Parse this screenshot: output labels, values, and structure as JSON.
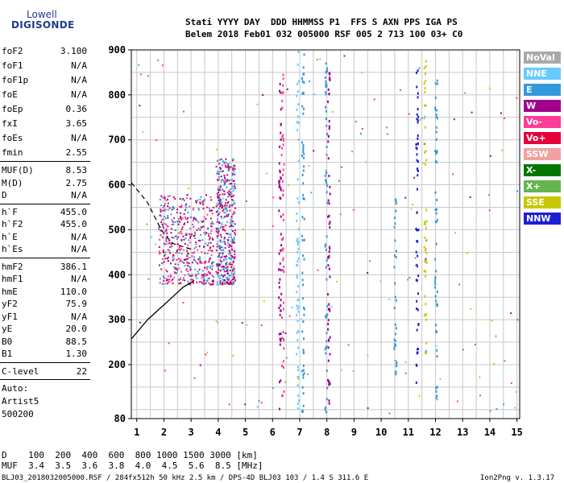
{
  "logo": {
    "line1": "Lowell",
    "line2": "DIGISONDE"
  },
  "header": {
    "row1": "Stati YYYY DAY  DDD HHMMSS P1  FFS S AXN PPS IGA PS",
    "row2": "Belem 2018 Feb01 032 005000 RSF 005 2 713 100 03+ C0"
  },
  "params_group1": [
    {
      "k": "foF2",
      "v": "3.100"
    },
    {
      "k": "foF1",
      "v": "N/A"
    },
    {
      "k": "foF1p",
      "v": "N/A"
    },
    {
      "k": "foE",
      "v": "N/A"
    },
    {
      "k": "foEp",
      "v": "0.36"
    },
    {
      "k": "fxI",
      "v": "3.65"
    },
    {
      "k": "foEs",
      "v": "N/A"
    },
    {
      "k": "fmin",
      "v": "2.55"
    }
  ],
  "params_group2": [
    {
      "k": "MUF(D)",
      "v": "8.53"
    },
    {
      "k": "M(D)",
      "v": "2.75"
    },
    {
      "k": "D",
      "v": "N/A"
    }
  ],
  "params_group3": [
    {
      "k": "h`F",
      "v": "455.0"
    },
    {
      "k": "h`F2",
      "v": "455.0"
    },
    {
      "k": "h`E",
      "v": "N/A"
    },
    {
      "k": "h`Es",
      "v": "N/A"
    }
  ],
  "params_group4": [
    {
      "k": "hmF2",
      "v": "386.1"
    },
    {
      "k": "hmF1",
      "v": "N/A"
    },
    {
      "k": "hmE",
      "v": "110.0"
    },
    {
      "k": "yF2",
      "v": "75.9"
    },
    {
      "k": "yF1",
      "v": "N/A"
    },
    {
      "k": "yE",
      "v": "20.0"
    },
    {
      "k": "B0",
      "v": "88.5"
    },
    {
      "k": "B1",
      "v": "1.30"
    }
  ],
  "clevel": {
    "k": "C-level",
    "v": "22"
  },
  "auto": [
    "Auto:",
    "Artist5",
    "500200"
  ],
  "legend": [
    {
      "label": "NoVal",
      "color": "#a9a9a9"
    },
    {
      "label": "NNE",
      "color": "#66ccff"
    },
    {
      "label": "E",
      "color": "#3399dd"
    },
    {
      "label": "W",
      "color": "#a0008c"
    },
    {
      "label": "Vo-",
      "color": "#ff3c96"
    },
    {
      "label": "Vo+",
      "color": "#e6003c"
    },
    {
      "label": "SSW",
      "color": "#f0a0a0"
    },
    {
      "label": "X-",
      "color": "#007800"
    },
    {
      "label": "X+",
      "color": "#64b450"
    },
    {
      "label": "SSE",
      "color": "#c8c800"
    },
    {
      "label": "NNW",
      "color": "#1e1ed2"
    }
  ],
  "bottom": {
    "d_row": "D    100  200  400  600  800 1000 1500 3000 [km]",
    "muf_row": "MUF  3.4  3.5  3.6  3.8  4.0  4.5  5.6  8.5 [MHz]"
  },
  "footer": {
    "left": "BLJ03_2018032005000.RSF / 284fx512h 50 kHz 2.5 km / DPS-4D BLJ03 103 / 1.4 S 311.6 E",
    "right": "Ion2Png v. 1.3.17"
  },
  "chart_data": {
    "type": "scatter",
    "title": "",
    "xlabel": "",
    "ylabel": "",
    "xlim": [
      0.8,
      15.1
    ],
    "ylim": [
      80,
      900
    ],
    "x_ticks": [
      1,
      2,
      3,
      4,
      5,
      6,
      7,
      8,
      9,
      10,
      11,
      12,
      13,
      14,
      15
    ],
    "y_ticks": [
      80,
      200,
      300,
      400,
      500,
      600,
      700,
      800,
      900
    ],
    "grid": true,
    "trace_profile": [
      [
        0.8,
        257
      ],
      [
        1.4,
        300
      ],
      [
        2.2,
        344
      ],
      [
        2.7,
        372
      ],
      [
        3.1,
        386
      ]
    ],
    "trace_dashed": [
      [
        0.8,
        605
      ],
      [
        1.4,
        560
      ],
      [
        1.9,
        500
      ],
      [
        2.3,
        470
      ],
      [
        3.1,
        455
      ]
    ],
    "vertical_traces": [
      {
        "x": 6.25,
        "ymin": 100,
        "ymax": 830,
        "color": "#a0008c"
      },
      {
        "x": 6.35,
        "ymin": 110,
        "ymax": 860,
        "color": "#ff3c96"
      },
      {
        "x": 6.9,
        "ymin": 90,
        "ymax": 900,
        "color": "#66ccff"
      },
      {
        "x": 7.1,
        "ymin": 90,
        "ymax": 900,
        "color": "#3399dd"
      },
      {
        "x": 7.95,
        "ymin": 90,
        "ymax": 890,
        "color": "#3399dd"
      },
      {
        "x": 8.05,
        "ymin": 100,
        "ymax": 880,
        "color": "#a0008c"
      },
      {
        "x": 10.5,
        "ymin": 180,
        "ymax": 600,
        "color": "#3399dd"
      },
      {
        "x": 11.3,
        "ymin": 150,
        "ymax": 880,
        "color": "#1e1ed2"
      },
      {
        "x": 11.6,
        "ymin": 220,
        "ymax": 900,
        "color": "#c8c800"
      },
      {
        "x": 12.0,
        "ymin": 120,
        "ymax": 880,
        "color": "#3399dd"
      }
    ],
    "clusters": [
      {
        "xmin": 1.8,
        "xmax": 3.8,
        "ymin": 380,
        "ymax": 580,
        "colors": [
          "#a0008c",
          "#ff3c96",
          "#e6003c",
          "#3399dd"
        ]
      },
      {
        "xmin": 3.9,
        "xmax": 4.6,
        "ymin": 380,
        "ymax": 660,
        "colors": [
          "#a0008c",
          "#e6003c",
          "#3399dd",
          "#66ccff"
        ]
      }
    ]
  }
}
